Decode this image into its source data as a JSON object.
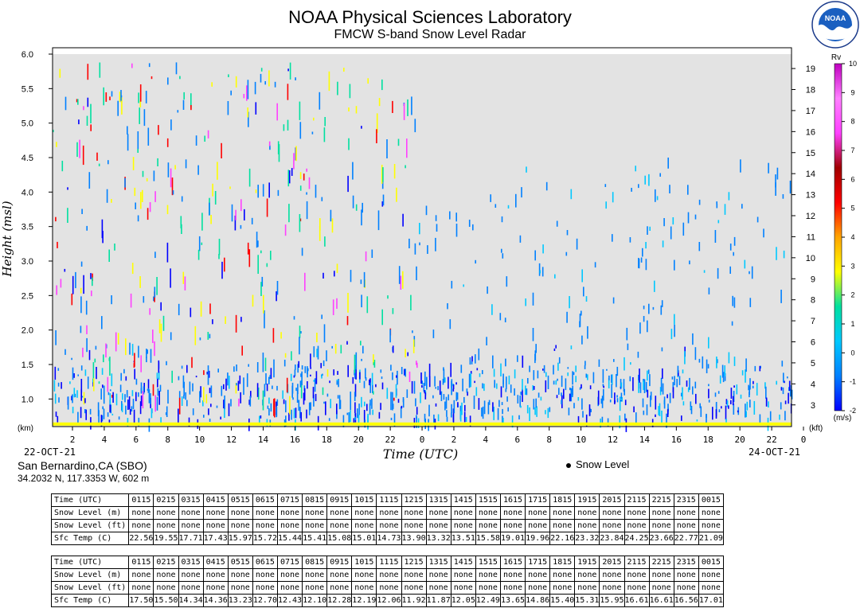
{
  "header": {
    "title": "NOAA Physical Sciences Laboratory",
    "subtitle": "FMCW S-band Snow Level Radar",
    "logo_text": "NOAA"
  },
  "station": {
    "name": "San Bernardino,CA (SBO)",
    "coords": "34.2032 N, 117.3353 W, 602 m"
  },
  "legend": {
    "snow_level": "Snow Level"
  },
  "chart_data": {
    "type": "heatmap",
    "xlabel": "Time (UTC)",
    "ylabel": "Height (msl)",
    "date_start": "22-OCT-21",
    "date_end": "24-OCT-21",
    "x_tick_labels": [
      "2",
      "4",
      "6",
      "8",
      "10",
      "12",
      "14",
      "16",
      "18",
      "20",
      "22",
      "0",
      "2",
      "4",
      "6",
      "8",
      "10",
      "12",
      "14",
      "16",
      "18",
      "20",
      "22",
      "0"
    ],
    "y_left_unit": "(km)",
    "y_left_ticks": [
      "1.0",
      "1.5",
      "2.0",
      "2.5",
      "3.0",
      "3.5",
      "4.0",
      "4.5",
      "5.0",
      "5.5",
      "6.0"
    ],
    "y_left_range_km": [
      0.6,
      6.0
    ],
    "y_right_unit": "(kft)",
    "y_right_ticks": [
      "3",
      "4",
      "5",
      "6",
      "7",
      "8",
      "9",
      "10",
      "11",
      "12",
      "13",
      "14",
      "15",
      "16",
      "17",
      "18",
      "19"
    ],
    "colorbar": {
      "label": "Rv",
      "unit": "(m/s)",
      "ticks": [
        "-2",
        "-1",
        "0",
        "1",
        "2",
        "3",
        "4",
        "5",
        "6",
        "7",
        "8",
        "9",
        "10"
      ],
      "range": [
        -2,
        10
      ],
      "colors": [
        "#0000ff",
        "#0080ff",
        "#00c8ff",
        "#00e0a0",
        "#ffff00",
        "#ffa500",
        "#ff0000",
        "#a00000",
        "#ff40ff",
        "#ff80ff",
        "#c000c0"
      ]
    },
    "background_color": "#e3e3e3",
    "snow_level_values": []
  },
  "tables": [
    {
      "rows": [
        {
          "label": "Time (UTC)",
          "values": [
            "0115",
            "0215",
            "0315",
            "0415",
            "0515",
            "0615",
            "0715",
            "0815",
            "0915",
            "1015",
            "1115",
            "1215",
            "1315",
            "1415",
            "1515",
            "1615",
            "1715",
            "1815",
            "1915",
            "2015",
            "2115",
            "2215",
            "2315",
            "0015"
          ]
        },
        {
          "label": "Snow Level (m)",
          "values": [
            "none",
            "none",
            "none",
            "none",
            "none",
            "none",
            "none",
            "none",
            "none",
            "none",
            "none",
            "none",
            "none",
            "none",
            "none",
            "none",
            "none",
            "none",
            "none",
            "none",
            "none",
            "none",
            "none",
            "none"
          ]
        },
        {
          "label": "Snow Level (ft)",
          "values": [
            "none",
            "none",
            "none",
            "none",
            "none",
            "none",
            "none",
            "none",
            "none",
            "none",
            "none",
            "none",
            "none",
            "none",
            "none",
            "none",
            "none",
            "none",
            "none",
            "none",
            "none",
            "none",
            "none",
            "none"
          ]
        },
        {
          "label": "Sfc Temp (C)",
          "values": [
            "22.56",
            "19.55",
            "17.71",
            "17.43",
            "15.97",
            "15.72",
            "15.44",
            "15.41",
            "15.08",
            "15.01",
            "14.73",
            "13.90",
            "13.32",
            "13.51",
            "15.58",
            "19.01",
            "19.96",
            "22.16",
            "23.32",
            "23.84",
            "24.25",
            "23.66",
            "22.77",
            "21.09"
          ]
        }
      ]
    },
    {
      "rows": [
        {
          "label": "Time (UTC)",
          "values": [
            "0115",
            "0215",
            "0315",
            "0415",
            "0515",
            "0615",
            "0715",
            "0815",
            "0915",
            "1015",
            "1115",
            "1215",
            "1315",
            "1415",
            "1515",
            "1615",
            "1715",
            "1815",
            "1915",
            "2015",
            "2115",
            "2215",
            "2315",
            "0015"
          ]
        },
        {
          "label": "Snow Level (m)",
          "values": [
            "none",
            "none",
            "none",
            "none",
            "none",
            "none",
            "none",
            "none",
            "none",
            "none",
            "none",
            "none",
            "none",
            "none",
            "none",
            "none",
            "none",
            "none",
            "none",
            "none",
            "none",
            "none",
            "none",
            "none"
          ]
        },
        {
          "label": "Snow Level (ft)",
          "values": [
            "none",
            "none",
            "none",
            "none",
            "none",
            "none",
            "none",
            "none",
            "none",
            "none",
            "none",
            "none",
            "none",
            "none",
            "none",
            "none",
            "none",
            "none",
            "none",
            "none",
            "none",
            "none",
            "none",
            "none"
          ]
        },
        {
          "label": "Sfc Temp (C)",
          "values": [
            "17.50",
            "15.50",
            "14.34",
            "14.36",
            "13.23",
            "12.70",
            "12.43",
            "12.10",
            "12.28",
            "12.19",
            "12.06",
            "11.92",
            "11.87",
            "12.05",
            "12.49",
            "13.65",
            "14.86",
            "15.40",
            "15.31",
            "15.95",
            "16.61",
            "16.61",
            "16.56",
            "17.01"
          ]
        }
      ]
    }
  ]
}
